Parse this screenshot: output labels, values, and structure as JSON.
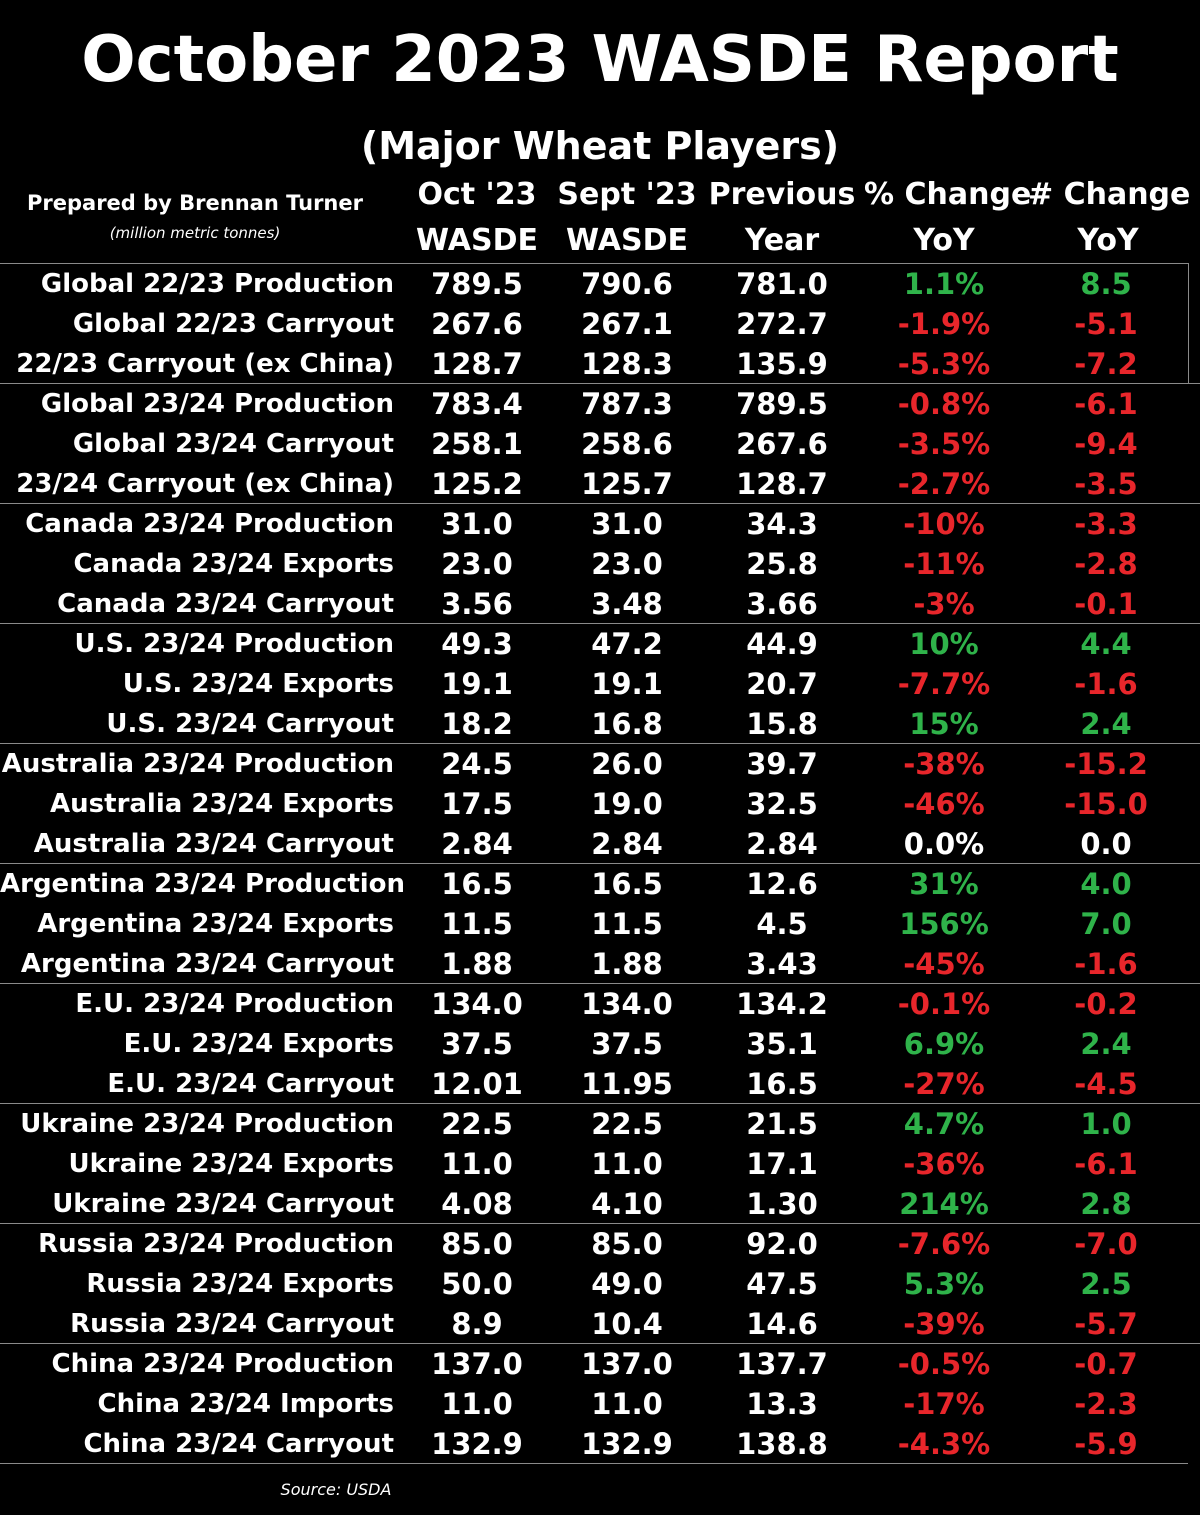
{
  "title": "October 2023 WASDE Report",
  "subtitle": "(Major Wheat Players)",
  "prepared_by": "Prepared by Brennan Turner",
  "units": "(million metric tonnes)",
  "source": "Source: USDA",
  "colors": {
    "positive": "#2fb34a",
    "negative": "#e8262b",
    "neutral": "#ffffff",
    "background": "#000000"
  },
  "chart_data": {
    "type": "table",
    "columns": [
      {
        "line1": "Oct '23",
        "line2": "WASDE"
      },
      {
        "line1": "Sept '23",
        "line2": "WASDE"
      },
      {
        "line1": "Previous",
        "line2": "Year"
      },
      {
        "line1": "% Change",
        "line2": "YoY"
      },
      {
        "line1": "# Change",
        "line2": "YoY"
      }
    ],
    "rows": [
      {
        "label": "Global 22/23 Production",
        "oct": "789.5",
        "sept": "790.6",
        "prev": "781.0",
        "pct": "1.1%",
        "chg": "8.5",
        "dir": "up"
      },
      {
        "label": "Global 22/23 Carryout",
        "oct": "267.6",
        "sept": "267.1",
        "prev": "272.7",
        "pct": "-1.9%",
        "chg": "-5.1",
        "dir": "down"
      },
      {
        "label": "22/23 Carryout (ex China)",
        "oct": "128.7",
        "sept": "128.3",
        "prev": "135.9",
        "pct": "-5.3%",
        "chg": "-7.2",
        "dir": "down"
      },
      {
        "label": "Global 23/24 Production",
        "oct": "783.4",
        "sept": "787.3",
        "prev": "789.5",
        "pct": "-0.8%",
        "chg": "-6.1",
        "dir": "down"
      },
      {
        "label": "Global 23/24 Carryout",
        "oct": "258.1",
        "sept": "258.6",
        "prev": "267.6",
        "pct": "-3.5%",
        "chg": "-9.4",
        "dir": "down"
      },
      {
        "label": "23/24 Carryout (ex China)",
        "oct": "125.2",
        "sept": "125.7",
        "prev": "128.7",
        "pct": "-2.7%",
        "chg": "-3.5",
        "dir": "down"
      },
      {
        "label": "Canada 23/24 Production",
        "oct": "31.0",
        "sept": "31.0",
        "prev": "34.3",
        "pct": "-10%",
        "chg": "-3.3",
        "dir": "down"
      },
      {
        "label": "Canada 23/24 Exports",
        "oct": "23.0",
        "sept": "23.0",
        "prev": "25.8",
        "pct": "-11%",
        "chg": "-2.8",
        "dir": "down"
      },
      {
        "label": "Canada 23/24 Carryout",
        "oct": "3.56",
        "sept": "3.48",
        "prev": "3.66",
        "pct": "-3%",
        "chg": "-0.1",
        "dir": "down"
      },
      {
        "label": "U.S. 23/24 Production",
        "oct": "49.3",
        "sept": "47.2",
        "prev": "44.9",
        "pct": "10%",
        "chg": "4.4",
        "dir": "up"
      },
      {
        "label": "U.S. 23/24 Exports",
        "oct": "19.1",
        "sept": "19.1",
        "prev": "20.7",
        "pct": "-7.7%",
        "chg": "-1.6",
        "dir": "down"
      },
      {
        "label": "U.S. 23/24 Carryout",
        "oct": "18.2",
        "sept": "16.8",
        "prev": "15.8",
        "pct": "15%",
        "chg": "2.4",
        "dir": "up"
      },
      {
        "label": "Australia 23/24 Production",
        "oct": "24.5",
        "sept": "26.0",
        "prev": "39.7",
        "pct": "-38%",
        "chg": "-15.2",
        "dir": "down"
      },
      {
        "label": "Australia 23/24 Exports",
        "oct": "17.5",
        "sept": "19.0",
        "prev": "32.5",
        "pct": "-46%",
        "chg": "-15.0",
        "dir": "down"
      },
      {
        "label": "Australia 23/24 Carryout",
        "oct": "2.84",
        "sept": "2.84",
        "prev": "2.84",
        "pct": "0.0%",
        "chg": "0.0",
        "dir": "flat"
      },
      {
        "label": "Argentina 23/24 Production",
        "oct": "16.5",
        "sept": "16.5",
        "prev": "12.6",
        "pct": "31%",
        "chg": "4.0",
        "dir": "up"
      },
      {
        "label": "Argentina 23/24 Exports",
        "oct": "11.5",
        "sept": "11.5",
        "prev": "4.5",
        "pct": "156%",
        "chg": "7.0",
        "dir": "up"
      },
      {
        "label": "Argentina 23/24 Carryout",
        "oct": "1.88",
        "sept": "1.88",
        "prev": "3.43",
        "pct": "-45%",
        "chg": "-1.6",
        "dir": "down"
      },
      {
        "label": "E.U. 23/24 Production",
        "oct": "134.0",
        "sept": "134.0",
        "prev": "134.2",
        "pct": "-0.1%",
        "chg": "-0.2",
        "dir": "down"
      },
      {
        "label": "E.U. 23/24 Exports",
        "oct": "37.5",
        "sept": "37.5",
        "prev": "35.1",
        "pct": "6.9%",
        "chg": "2.4",
        "dir": "up"
      },
      {
        "label": "E.U. 23/24 Carryout",
        "oct": "12.01",
        "sept": "11.95",
        "prev": "16.5",
        "pct": "-27%",
        "chg": "-4.5",
        "dir": "down"
      },
      {
        "label": "Ukraine 23/24 Production",
        "oct": "22.5",
        "sept": "22.5",
        "prev": "21.5",
        "pct": "4.7%",
        "chg": "1.0",
        "dir": "up"
      },
      {
        "label": "Ukraine 23/24 Exports",
        "oct": "11.0",
        "sept": "11.0",
        "prev": "17.1",
        "pct": "-36%",
        "chg": "-6.1",
        "dir": "down"
      },
      {
        "label": "Ukraine 23/24 Carryout",
        "oct": "4.08",
        "sept": "4.10",
        "prev": "1.30",
        "pct": "214%",
        "chg": "2.8",
        "dir": "up"
      },
      {
        "label": "Russia 23/24 Production",
        "oct": "85.0",
        "sept": "85.0",
        "prev": "92.0",
        "pct": "-7.6%",
        "chg": "-7.0",
        "dir": "down"
      },
      {
        "label": "Russia 23/24 Exports",
        "oct": "50.0",
        "sept": "49.0",
        "prev": "47.5",
        "pct": "5.3%",
        "chg": "2.5",
        "dir": "up"
      },
      {
        "label": "Russia 23/24 Carryout",
        "oct": "8.9",
        "sept": "10.4",
        "prev": "14.6",
        "pct": "-39%",
        "chg": "-5.7",
        "dir": "down"
      },
      {
        "label": "China 23/24 Production",
        "oct": "137.0",
        "sept": "137.0",
        "prev": "137.7",
        "pct": "-0.5%",
        "chg": "-0.7",
        "dir": "down"
      },
      {
        "label": "China 23/24 Imports",
        "oct": "11.0",
        "sept": "11.0",
        "prev": "13.3",
        "pct": "-17%",
        "chg": "-2.3",
        "dir": "down"
      },
      {
        "label": "China 23/24 Carryout",
        "oct": "132.9",
        "sept": "132.9",
        "prev": "138.8",
        "pct": "-4.3%",
        "chg": "-5.9",
        "dir": "down"
      }
    ]
  }
}
